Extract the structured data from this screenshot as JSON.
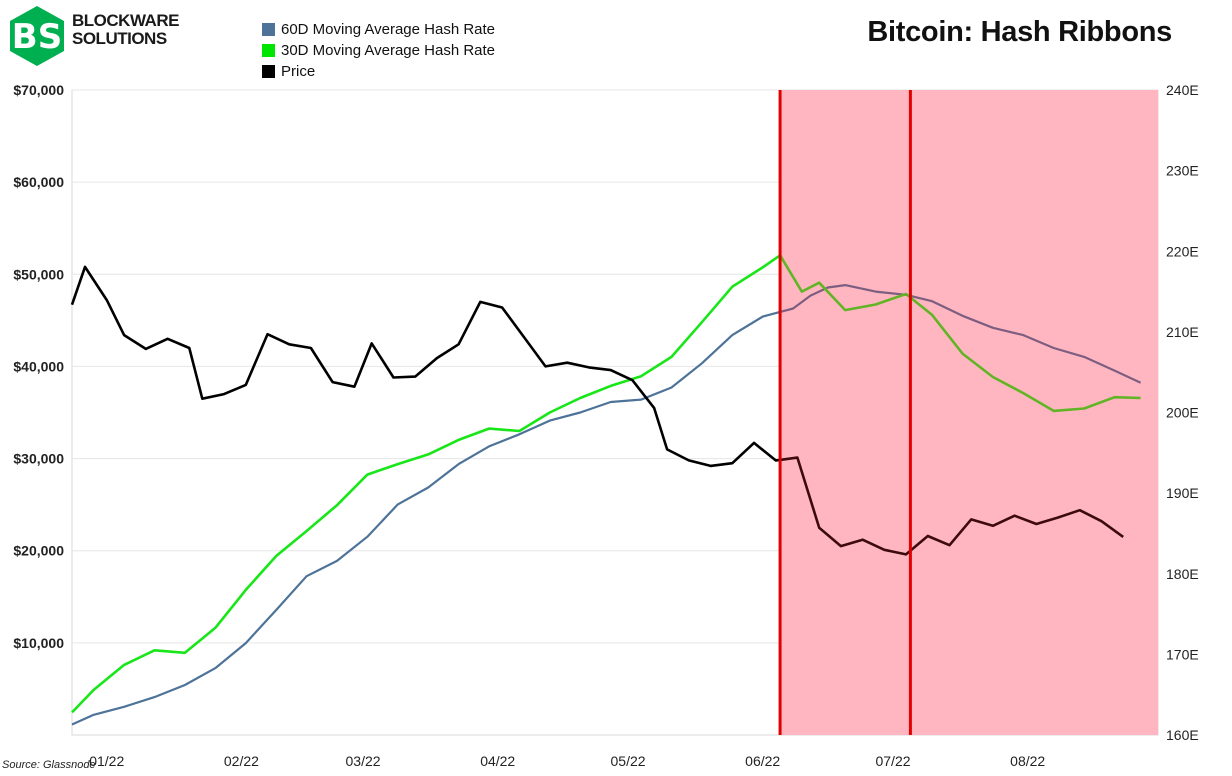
{
  "brand": {
    "line1": "BLOCKWARE",
    "line2": "SOLUTIONS"
  },
  "title": "Bitcoin: Hash Ribbons",
  "source": "Source: Glassnode",
  "legend": [
    {
      "label": "60D Moving Average Hash Rate",
      "color": "#4d7399"
    },
    {
      "label": "30D Moving Average Hash Rate",
      "color": "#00e600"
    },
    {
      "label": "Price",
      "color": "#000000"
    }
  ],
  "colors": {
    "ma60": "#4d7399",
    "ma30": "#19e619",
    "price": "#000000",
    "shade": "#ffb6c1",
    "vline": "#e00000",
    "shade_ma60": "#7d5e80",
    "shade_ma30": "#61b525",
    "shade_price": "#3d0a10"
  },
  "chart_data": {
    "type": "line",
    "title": "Bitcoin: Hash Ribbons",
    "x_range": [
      "2021-12-24",
      "2022-08-31"
    ],
    "x_ticks": [
      {
        "date": "2022-01-01",
        "label": "01/22"
      },
      {
        "date": "2022-02-01",
        "label": "02/22"
      },
      {
        "date": "2022-03-01",
        "label": "03/22"
      },
      {
        "date": "2022-04-01",
        "label": "04/22"
      },
      {
        "date": "2022-05-01",
        "label": "05/22"
      },
      {
        "date": "2022-06-01",
        "label": "06/22"
      },
      {
        "date": "2022-07-01",
        "label": "07/22"
      },
      {
        "date": "2022-08-01",
        "label": "08/22"
      }
    ],
    "y_left": {
      "min": 0,
      "max": 70000,
      "ticks": [
        10000,
        20000,
        30000,
        40000,
        50000,
        60000,
        70000
      ],
      "labels": [
        "$10,000",
        "$20,000",
        "$30,000",
        "$40,000",
        "$50,000",
        "$60,000",
        "$70,000"
      ]
    },
    "y_right": {
      "min": 160,
      "max": 240,
      "ticks": [
        160,
        170,
        180,
        190,
        200,
        210,
        220,
        230,
        240
      ],
      "labels": [
        "160E",
        "170E",
        "180E",
        "190E",
        "200E",
        "210E",
        "220E",
        "230E",
        "240E"
      ]
    },
    "shaded_region": [
      "2022-06-05",
      "2022-08-31"
    ],
    "vertical_lines": [
      "2022-06-05",
      "2022-07-05"
    ],
    "grid": "horizontal",
    "legend_position": "top-left",
    "series": [
      {
        "name": "60D Moving Average Hash Rate",
        "axis": "right",
        "points": [
          [
            "2021-12-24",
            161.3
          ],
          [
            "2021-12-29",
            162.5
          ],
          [
            "2022-01-05",
            163.5
          ],
          [
            "2022-01-12",
            164.7
          ],
          [
            "2022-01-19",
            166.2
          ],
          [
            "2022-01-26",
            168.3
          ],
          [
            "2022-02-02",
            171.4
          ],
          [
            "2022-02-09",
            175.5
          ],
          [
            "2022-02-16",
            179.7
          ],
          [
            "2022-02-23",
            181.6
          ],
          [
            "2022-03-02",
            184.6
          ],
          [
            "2022-03-09",
            188.6
          ],
          [
            "2022-03-16",
            190.7
          ],
          [
            "2022-03-23",
            193.6
          ],
          [
            "2022-03-30",
            195.8
          ],
          [
            "2022-04-06",
            197.3
          ],
          [
            "2022-04-13",
            199.0
          ],
          [
            "2022-04-20",
            200.0
          ],
          [
            "2022-04-27",
            201.3
          ],
          [
            "2022-05-04",
            201.6
          ],
          [
            "2022-05-11",
            203.1
          ],
          [
            "2022-05-18",
            206.1
          ],
          [
            "2022-05-25",
            209.6
          ],
          [
            "2022-06-01",
            211.9
          ],
          [
            "2022-06-08",
            212.9
          ],
          [
            "2022-06-12",
            214.5
          ],
          [
            "2022-06-16",
            215.5
          ],
          [
            "2022-06-20",
            215.8
          ],
          [
            "2022-06-27",
            215.0
          ],
          [
            "2022-07-04",
            214.6
          ],
          [
            "2022-07-10",
            213.8
          ],
          [
            "2022-07-17",
            212.0
          ],
          [
            "2022-07-24",
            210.5
          ],
          [
            "2022-07-31",
            209.6
          ],
          [
            "2022-08-07",
            208.0
          ],
          [
            "2022-08-14",
            206.9
          ],
          [
            "2022-08-21",
            205.2
          ],
          [
            "2022-08-27",
            203.7
          ]
        ]
      },
      {
        "name": "30D Moving Average Hash Rate",
        "axis": "right",
        "points": [
          [
            "2021-12-24",
            162.8
          ],
          [
            "2021-12-29",
            165.6
          ],
          [
            "2022-01-05",
            168.7
          ],
          [
            "2022-01-12",
            170.5
          ],
          [
            "2022-01-19",
            170.2
          ],
          [
            "2022-01-26",
            173.3
          ],
          [
            "2022-02-02",
            178.0
          ],
          [
            "2022-02-09",
            182.2
          ],
          [
            "2022-02-16",
            185.3
          ],
          [
            "2022-02-23",
            188.5
          ],
          [
            "2022-03-02",
            192.3
          ],
          [
            "2022-03-09",
            193.6
          ],
          [
            "2022-03-16",
            194.8
          ],
          [
            "2022-03-23",
            196.6
          ],
          [
            "2022-03-30",
            198.0
          ],
          [
            "2022-04-06",
            197.7
          ],
          [
            "2022-04-13",
            200.0
          ],
          [
            "2022-04-20",
            201.8
          ],
          [
            "2022-04-27",
            203.3
          ],
          [
            "2022-05-04",
            204.5
          ],
          [
            "2022-05-11",
            206.9
          ],
          [
            "2022-05-18",
            211.2
          ],
          [
            "2022-05-25",
            215.6
          ],
          [
            "2022-06-01",
            218.0
          ],
          [
            "2022-06-05",
            219.5
          ],
          [
            "2022-06-10",
            215.0
          ],
          [
            "2022-06-14",
            216.1
          ],
          [
            "2022-06-20",
            212.7
          ],
          [
            "2022-06-27",
            213.4
          ],
          [
            "2022-07-04",
            214.7
          ],
          [
            "2022-07-10",
            212.1
          ],
          [
            "2022-07-17",
            207.3
          ],
          [
            "2022-07-24",
            204.4
          ],
          [
            "2022-07-31",
            202.4
          ],
          [
            "2022-08-07",
            200.2
          ],
          [
            "2022-08-14",
            200.5
          ],
          [
            "2022-08-21",
            201.9
          ],
          [
            "2022-08-27",
            201.8
          ]
        ]
      },
      {
        "name": "Price",
        "axis": "left",
        "points": [
          [
            "2021-12-24",
            46700
          ],
          [
            "2021-12-27",
            50800
          ],
          [
            "2022-01-01",
            47200
          ],
          [
            "2022-01-05",
            43400
          ],
          [
            "2022-01-10",
            41900
          ],
          [
            "2022-01-15",
            43000
          ],
          [
            "2022-01-20",
            42000
          ],
          [
            "2022-01-23",
            36500
          ],
          [
            "2022-01-28",
            37000
          ],
          [
            "2022-02-02",
            38000
          ],
          [
            "2022-02-07",
            43500
          ],
          [
            "2022-02-12",
            42400
          ],
          [
            "2022-02-17",
            42000
          ],
          [
            "2022-02-22",
            38300
          ],
          [
            "2022-02-27",
            37800
          ],
          [
            "2022-03-03",
            42500
          ],
          [
            "2022-03-08",
            38800
          ],
          [
            "2022-03-13",
            38900
          ],
          [
            "2022-03-18",
            40900
          ],
          [
            "2022-03-23",
            42400
          ],
          [
            "2022-03-28",
            47000
          ],
          [
            "2022-04-02",
            46400
          ],
          [
            "2022-04-07",
            43200
          ],
          [
            "2022-04-12",
            40000
          ],
          [
            "2022-04-17",
            40400
          ],
          [
            "2022-04-22",
            39900
          ],
          [
            "2022-04-27",
            39600
          ],
          [
            "2022-05-02",
            38500
          ],
          [
            "2022-05-07",
            35500
          ],
          [
            "2022-05-10",
            31000
          ],
          [
            "2022-05-15",
            29800
          ],
          [
            "2022-05-20",
            29200
          ],
          [
            "2022-05-25",
            29500
          ],
          [
            "2022-05-30",
            31700
          ],
          [
            "2022-06-04",
            29800
          ],
          [
            "2022-06-09",
            30100
          ],
          [
            "2022-06-14",
            22500
          ],
          [
            "2022-06-19",
            20500
          ],
          [
            "2022-06-24",
            21200
          ],
          [
            "2022-06-29",
            20100
          ],
          [
            "2022-07-04",
            19600
          ],
          [
            "2022-07-09",
            21600
          ],
          [
            "2022-07-14",
            20600
          ],
          [
            "2022-07-19",
            23400
          ],
          [
            "2022-07-24",
            22700
          ],
          [
            "2022-07-29",
            23800
          ],
          [
            "2022-08-03",
            22900
          ],
          [
            "2022-08-08",
            23600
          ],
          [
            "2022-08-13",
            24400
          ],
          [
            "2022-08-18",
            23200
          ],
          [
            "2022-08-23",
            21500
          ]
        ]
      }
    ]
  }
}
